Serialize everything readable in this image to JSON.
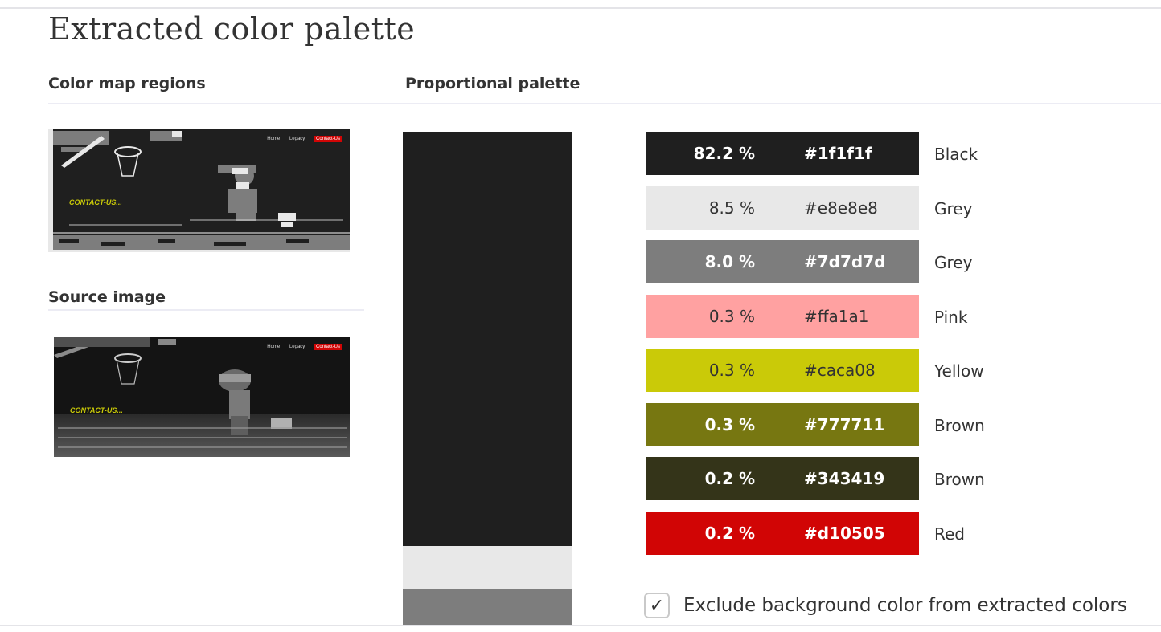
{
  "page": {
    "title": "Extracted color palette",
    "color_map_heading": "Color map regions",
    "proportional_heading": "Proportional palette",
    "source_heading": "Source image"
  },
  "thumbnail": {
    "nav": [
      "Home",
      "Legacy",
      "Contact-Us"
    ],
    "overlay_text": "CONTACT-US..."
  },
  "palette": [
    {
      "percent": "82.2 %",
      "hex": "#1f1f1f",
      "name": "Black",
      "share": 0.822,
      "text_color": "#ffffff",
      "bold": true
    },
    {
      "percent": "8.5 %",
      "hex": "#e8e8e8",
      "name": "Grey",
      "share": 0.085,
      "text_color": "#333333",
      "bold": false
    },
    {
      "percent": "8.0 %",
      "hex": "#7d7d7d",
      "name": "Grey",
      "share": 0.08,
      "text_color": "#ffffff",
      "bold": true
    },
    {
      "percent": "0.3 %",
      "hex": "#ffa1a1",
      "name": "Pink",
      "share": 0.003,
      "text_color": "#333333",
      "bold": false
    },
    {
      "percent": "0.3 %",
      "hex": "#caca08",
      "name": "Yellow",
      "share": 0.003,
      "text_color": "#333333",
      "bold": false
    },
    {
      "percent": "0.3 %",
      "hex": "#777711",
      "name": "Brown",
      "share": 0.003,
      "text_color": "#ffffff",
      "bold": true
    },
    {
      "percent": "0.2 %",
      "hex": "#343419",
      "name": "Brown",
      "share": 0.002,
      "text_color": "#ffffff",
      "bold": true
    },
    {
      "percent": "0.2 %",
      "hex": "#d10505",
      "name": "Red",
      "share": 0.002,
      "text_color": "#ffffff",
      "bold": true
    }
  ],
  "exclude_background": {
    "label": "Exclude background color from extracted colors",
    "checked": true,
    "check_glyph": "✓"
  }
}
